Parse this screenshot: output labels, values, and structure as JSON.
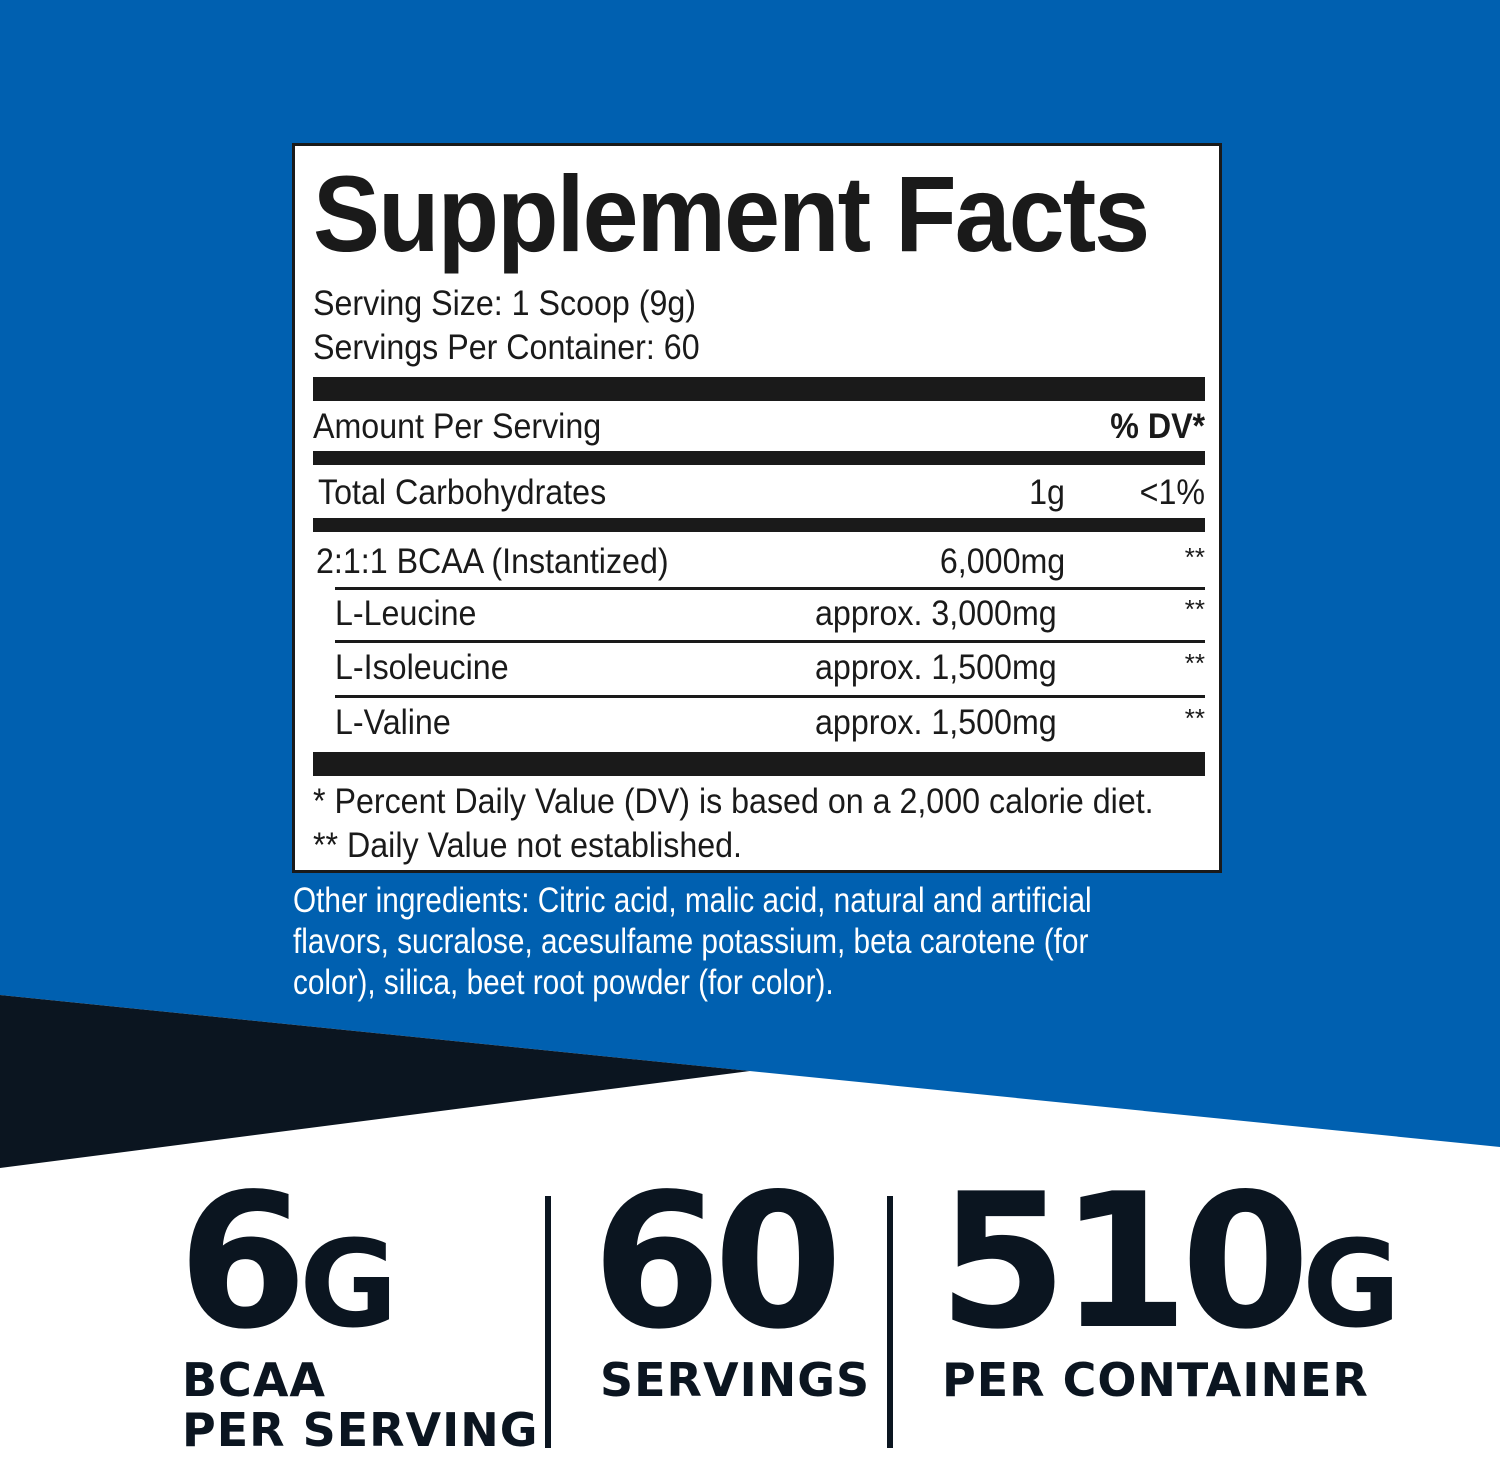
{
  "colors": {
    "brand_blue": "#0060b0",
    "dark_navy": "#0b1520",
    "white": "#ffffff"
  },
  "facts": {
    "title": "Supplement Facts",
    "serving_size": "Serving Size: 1 Scoop (9g)",
    "servings_per_container": "Servings Per Container: 60",
    "amount_header": "Amount Per Serving",
    "dv_header": "% DV*",
    "carbs": {
      "name": "Total Carbohydrates",
      "amount": "1g",
      "dv": "<1%"
    },
    "bcaa": {
      "name": "2:1:1 BCAA (Instantized)",
      "amount": "6,000mg",
      "dv": "**"
    },
    "sub_rows": [
      {
        "name": "L-Leucine",
        "amount": "approx. 3,000mg",
        "dv": "**"
      },
      {
        "name": "L-Isoleucine",
        "amount": "approx. 1,500mg",
        "dv": "**"
      },
      {
        "name": "L-Valine",
        "amount": "approx. 1,500mg",
        "dv": "**"
      }
    ],
    "footnote1": "* Percent Daily Value (DV) is based on a 2,000 calorie diet.",
    "footnote2": "** Daily Value not established."
  },
  "other_ingredients": "Other ingredients: Citric acid, malic acid, natural and artificial flavors, sucralose, acesulfame potassium, beta carotene (for color), silica, beet root powder (for color).",
  "stats": [
    {
      "value": "6",
      "unit": "G",
      "label1": "BCAA",
      "label2": "PER SERVING"
    },
    {
      "value": "60",
      "unit": "",
      "label1": "SERVINGS",
      "label2": ""
    },
    {
      "value": "510",
      "unit": "G",
      "label1": "PER CONTAINER",
      "label2": ""
    }
  ]
}
